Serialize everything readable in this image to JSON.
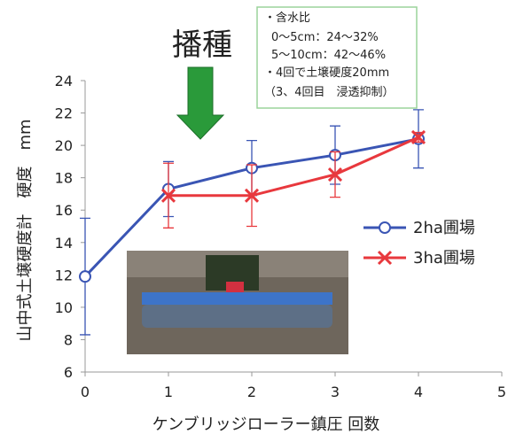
{
  "chart_data": {
    "type": "line",
    "annotation": "播種",
    "note_lines": [
      "・含水比",
      "0～5cm：24～32%",
      "5～10cm：42～46%",
      "・4回で土壌硬度20mm",
      "（3、4回目　浸透抑制）"
    ],
    "x_label": "ケンブリッジローラー鎮圧 回数",
    "y_label": "山中式土壌硬度計　硬度　mm",
    "xlim": [
      0,
      5
    ],
    "xticks": [
      0,
      1,
      2,
      3,
      4,
      5
    ],
    "ylim": [
      6,
      24
    ],
    "yticks": [
      6,
      8,
      10,
      12,
      14,
      16,
      18,
      20,
      22,
      24
    ],
    "grid": false,
    "legend": "right",
    "series": [
      {
        "name": "2ha圃場",
        "color": "#3a55b4",
        "marker": "circle",
        "x": [
          0,
          1,
          2,
          3,
          4
        ],
        "values": [
          11.9,
          17.3,
          18.6,
          19.4,
          20.4
        ],
        "errors": [
          3.6,
          1.7,
          1.7,
          1.8,
          1.8
        ]
      },
      {
        "name": "3ha圃場",
        "color": "#e8383d",
        "marker": "cross",
        "x": [
          1,
          2,
          3,
          4
        ],
        "values": [
          16.9,
          16.9,
          18.2,
          20.5
        ],
        "errors": [
          2.0,
          1.9,
          1.4,
          0.3
        ]
      }
    ]
  }
}
